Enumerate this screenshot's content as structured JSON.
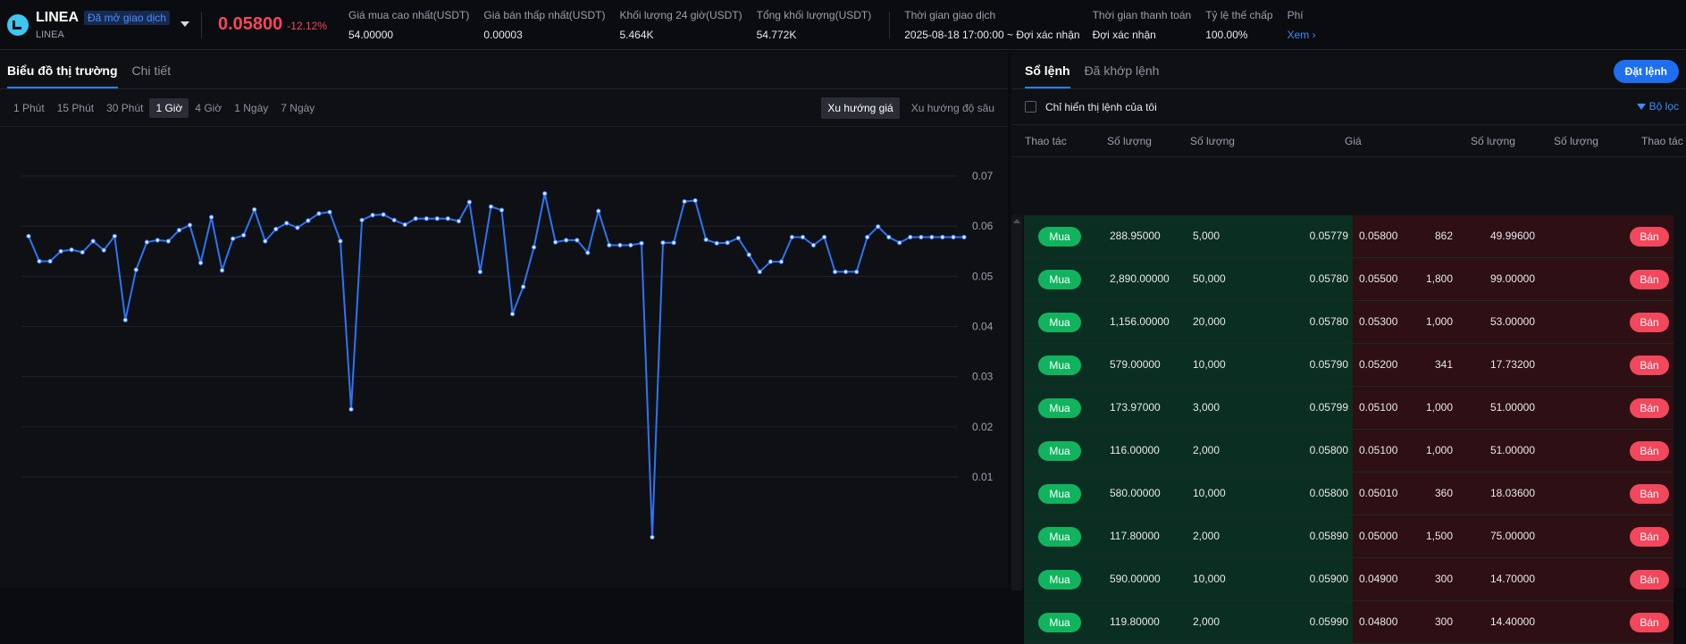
{
  "token": {
    "symbol": "LINEA",
    "badge": "Đã mở giao dịch",
    "subname": "LINEA",
    "price": "0.05800",
    "change": "-12.12%"
  },
  "stats": [
    {
      "label": "Giá mua cao nhất(USDT)",
      "value": "54.00000"
    },
    {
      "label": "Giá bán thấp nhất(USDT)",
      "value": "0.00003"
    },
    {
      "label": "Khối lượng 24 giờ(USDT)",
      "value": "5.464K"
    },
    {
      "label": "Tổng khối lượng(USDT)",
      "value": "54.772K"
    },
    {
      "label": "Thời gian giao dịch",
      "value": "2025-08-18 17:00:00 ~ Đợi xác nhận"
    },
    {
      "label": "Thời gian thanh toán",
      "value": "Đợi xác nhận"
    },
    {
      "label": "Tỷ lệ thế chấp",
      "value": "100.00%"
    },
    {
      "label": "Phí",
      "value": "Xem"
    }
  ],
  "chart_tabs": {
    "market": "Biểu đồ thị trường",
    "details": "Chi tiết"
  },
  "intervals": [
    "1 Phút",
    "15 Phút",
    "30 Phút",
    "1 Giờ",
    "4 Giờ",
    "1 Ngày",
    "7 Ngày"
  ],
  "active_interval": "1 Giờ",
  "view_toggle": {
    "price_trend": "Xu hướng giá",
    "depth_trend": "Xu hướng độ sâu"
  },
  "chart_data": {
    "type": "line",
    "title": "",
    "xlabel": "",
    "ylabel": "",
    "ylim": [
      0,
      0.074
    ],
    "yticks": [
      "0.07",
      "0.06",
      "0.05",
      "0.04",
      "0.03",
      "0.02",
      "0.01"
    ],
    "grid": true,
    "series_color": "#2d74f5",
    "values": [
      0.058,
      0.053,
      0.053,
      0.055,
      0.0553,
      0.0548,
      0.057,
      0.0552,
      0.058,
      0.0413,
      0.0513,
      0.0568,
      0.0572,
      0.057,
      0.0592,
      0.0602,
      0.0527,
      0.0618,
      0.0512,
      0.0575,
      0.0582,
      0.0633,
      0.057,
      0.0594,
      0.0606,
      0.0597,
      0.0611,
      0.0625,
      0.0628,
      0.057,
      0.0235,
      0.0612,
      0.0622,
      0.0623,
      0.0612,
      0.0603,
      0.0615,
      0.0615,
      0.0615,
      0.0615,
      0.061,
      0.0648,
      0.0509,
      0.0639,
      0.0632,
      0.0425,
      0.0479,
      0.0558,
      0.0665,
      0.0568,
      0.0572,
      0.0572,
      0.0547,
      0.063,
      0.0562,
      0.0562,
      0.0562,
      0.0566,
      -0.002,
      0.0567,
      0.0567,
      0.0649,
      0.0651,
      0.0573,
      0.0566,
      0.0567,
      0.0576,
      0.0543,
      0.0509,
      0.0529,
      0.0529,
      0.0578,
      0.0578,
      0.0562,
      0.0578,
      0.0509,
      0.0509,
      0.0509,
      0.0578,
      0.0599,
      0.0578,
      0.0567,
      0.0578,
      0.0578,
      0.0578,
      0.0578,
      0.0578,
      0.0578
    ]
  },
  "orderbook": {
    "tab_book": "Sổ lệnh",
    "tab_filled": "Đã khớp lệnh",
    "place_order": "Đặt lệnh",
    "only_mine": "Chỉ hiển thị lệnh của tôi",
    "filter": "Bộ lọc",
    "headers": [
      "Thao tác",
      "Số lượng",
      "Số lượng",
      "Giá",
      "Số lượng",
      "Số lượng",
      "Thao tác"
    ],
    "buy_label": "Mua",
    "sell_label": "Bán",
    "rows": [
      {
        "bid_total": "288.95000",
        "bid_qty": "5,000",
        "bid_price": "0.05779",
        "ask_price": "0.05800",
        "ask_qty": "862",
        "ask_total": "49.99600"
      },
      {
        "bid_total": "2,890.00000",
        "bid_qty": "50,000",
        "bid_price": "0.05780",
        "ask_price": "0.05500",
        "ask_qty": "1,800",
        "ask_total": "99.00000"
      },
      {
        "bid_total": "1,156.00000",
        "bid_qty": "20,000",
        "bid_price": "0.05780",
        "ask_price": "0.05300",
        "ask_qty": "1,000",
        "ask_total": "53.00000"
      },
      {
        "bid_total": "579.00000",
        "bid_qty": "10,000",
        "bid_price": "0.05790",
        "ask_price": "0.05200",
        "ask_qty": "341",
        "ask_total": "17.73200"
      },
      {
        "bid_total": "173.97000",
        "bid_qty": "3,000",
        "bid_price": "0.05799",
        "ask_price": "0.05100",
        "ask_qty": "1,000",
        "ask_total": "51.00000"
      },
      {
        "bid_total": "116.00000",
        "bid_qty": "2,000",
        "bid_price": "0.05800",
        "ask_price": "0.05100",
        "ask_qty": "1,000",
        "ask_total": "51.00000"
      },
      {
        "bid_total": "580.00000",
        "bid_qty": "10,000",
        "bid_price": "0.05800",
        "ask_price": "0.05010",
        "ask_qty": "360",
        "ask_total": "18.03600"
      },
      {
        "bid_total": "117.80000",
        "bid_qty": "2,000",
        "bid_price": "0.05890",
        "ask_price": "0.05000",
        "ask_qty": "1,500",
        "ask_total": "75.00000"
      },
      {
        "bid_total": "590.00000",
        "bid_qty": "10,000",
        "bid_price": "0.05900",
        "ask_price": "0.04900",
        "ask_qty": "300",
        "ask_total": "14.70000"
      },
      {
        "bid_total": "119.80000",
        "bid_qty": "2,000",
        "bid_price": "0.05990",
        "ask_price": "0.04800",
        "ask_qty": "300",
        "ask_total": "14.40000"
      }
    ]
  }
}
